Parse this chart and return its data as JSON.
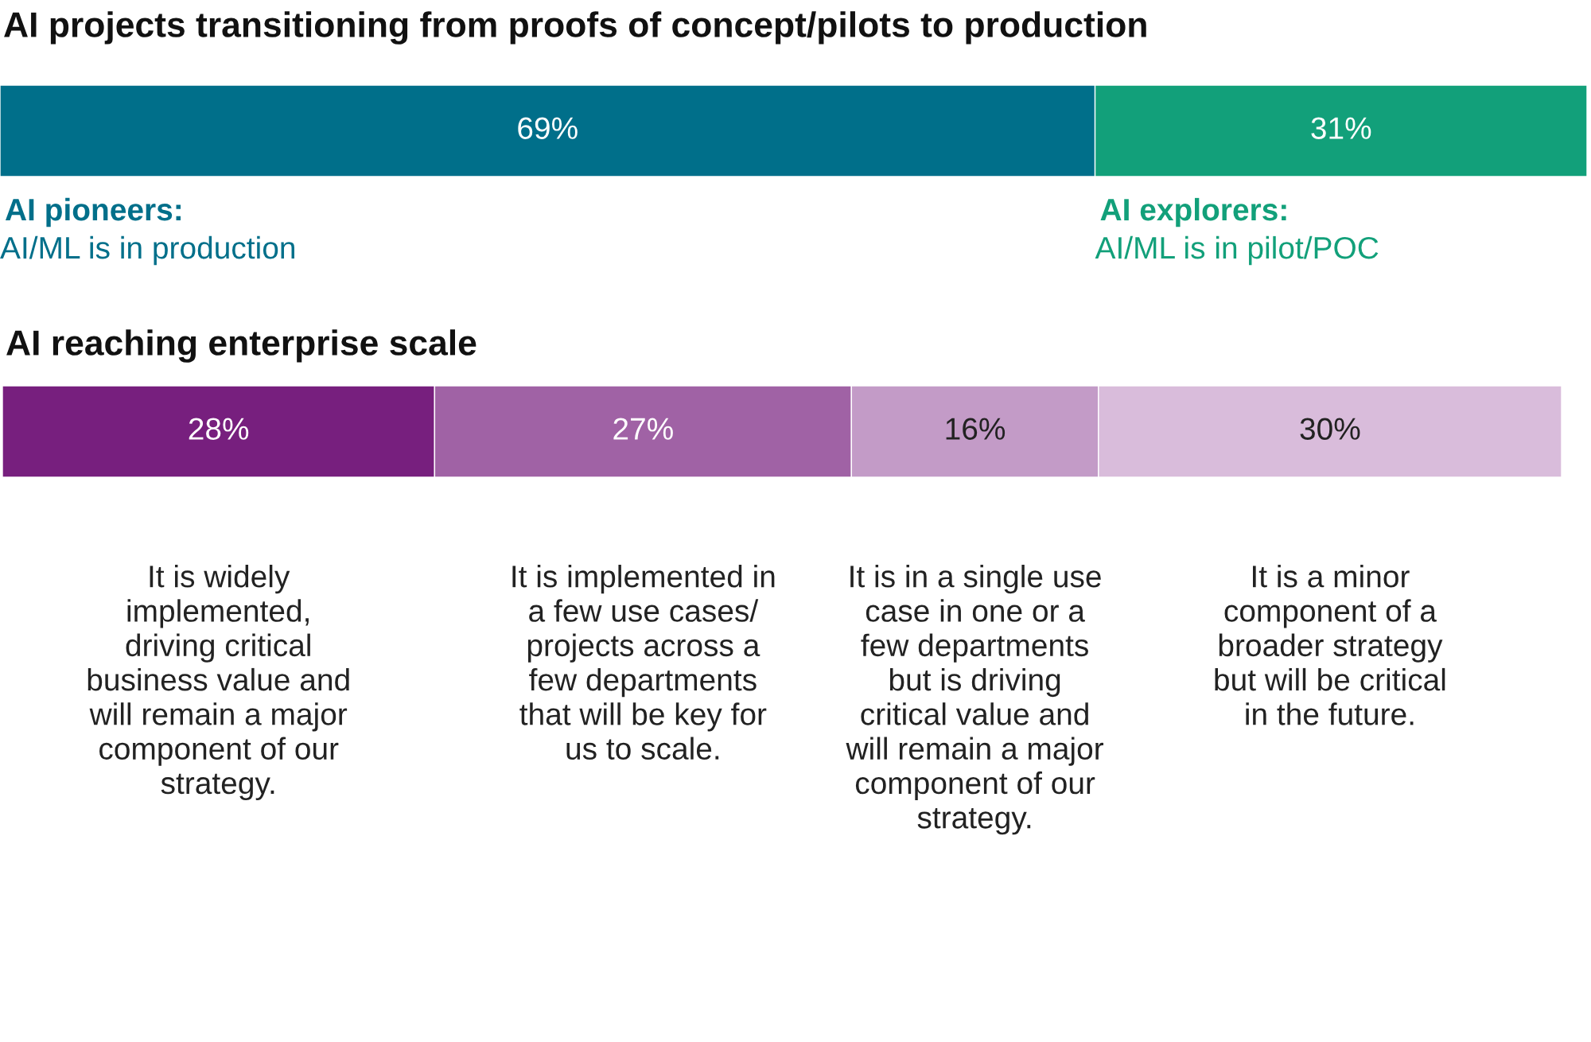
{
  "chart_data": [
    {
      "type": "bar",
      "title": "AI projects transitioning from proofs of concept/pilots to production",
      "orientation": "horizontal",
      "stacked": true,
      "categories": [
        null
      ],
      "legend": false,
      "series": [
        {
          "name": "AI pioneers:",
          "color": "#006f8a",
          "values": [
            69
          ],
          "value_labels": [
            "69%"
          ]
        },
        {
          "name": "AI explorers:",
          "color": "#12a07a",
          "values": [
            31
          ],
          "value_labels": [
            "31%"
          ]
        }
      ],
      "annotations": [
        "AI/ML is in production",
        "AI/ML is in pilot/POC"
      ]
    },
    {
      "type": "bar",
      "title": "AI reaching enterprise scale",
      "orientation": "horizontal",
      "stacked": true,
      "categories": [
        null
      ],
      "legend": false,
      "series": [
        {
          "color": "#771f7e",
          "values": [
            28
          ],
          "value_labels": [
            "28%"
          ]
        },
        {
          "color": "#a062a5",
          "values": [
            27
          ],
          "value_labels": [
            "27%"
          ]
        },
        {
          "color": "#c39bc7",
          "values": [
            16
          ],
          "value_labels": [
            "16%"
          ]
        },
        {
          "color": "#d9bcdb",
          "values": [
            30
          ],
          "value_labels": [
            "30%"
          ]
        }
      ],
      "annotations": [
        "It is widely\nimplemented,\ndriving critical\nbusiness value and\nwill remain a major\ncomponent of our\nstrategy.",
        "It is implemented in\na few use cases/\nprojects across a\nfew departments\nthat will be key for\nus to scale.",
        "It is in a single use\ncase in one or a\nfew departments\nbut is driving\ncritical value and\nwill remain a major\ncomponent of our\nstrategy.",
        "It is a minor\ncomponent of a\nbroader strategy\nbut will be critical\nin the future."
      ]
    }
  ]
}
